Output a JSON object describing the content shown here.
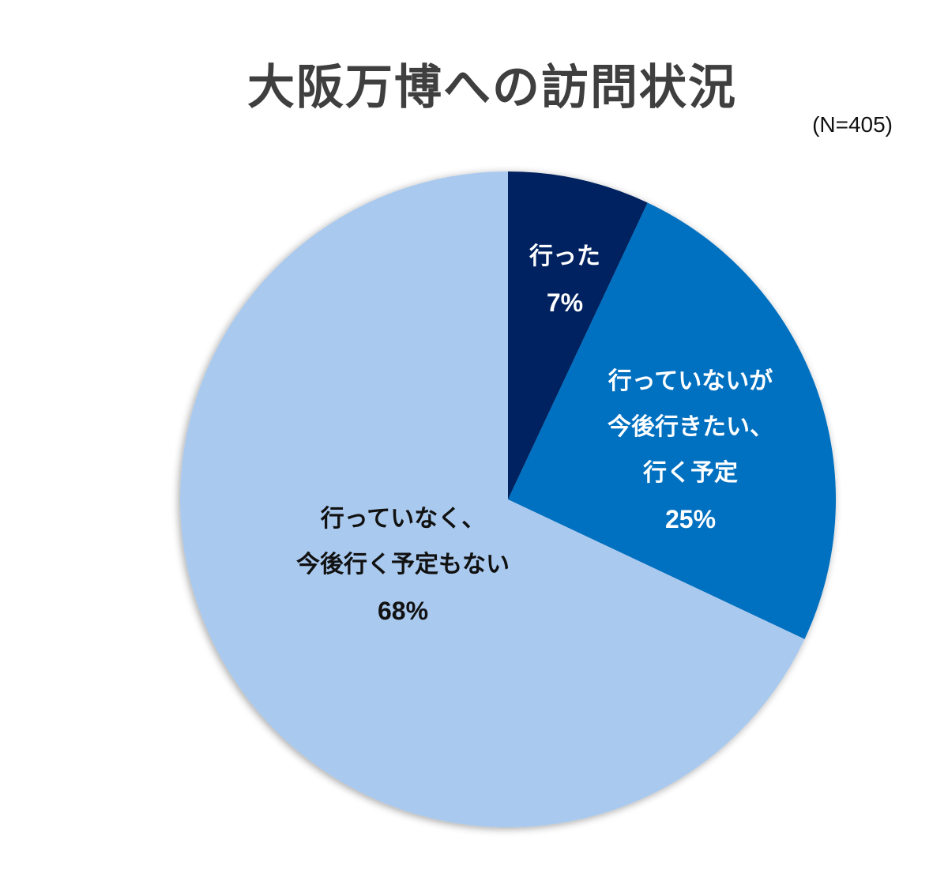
{
  "chart_data": {
    "type": "pie",
    "title": "大阪万博への訪問状況",
    "subtitle": "(N=405)",
    "categories": [
      "行った",
      "行っていないが今後行きたい、行く予定",
      "行っていなく、今後行く予定もない"
    ],
    "values": [
      7,
      25,
      68
    ],
    "unit": "%",
    "colors": [
      "#002060",
      "#0070C0",
      "#A9C9EE"
    ],
    "labels": [
      {
        "lines": [
          "行った"
        ],
        "pct": "7%"
      },
      {
        "lines": [
          "行っていないが",
          "今後行きたい、",
          "行く予定"
        ],
        "pct": "25%"
      },
      {
        "lines": [
          "行っていなく、",
          "今後行く予定もない"
        ],
        "pct": "68%"
      }
    ],
    "start_angle": "12 o'clock",
    "direction": "clockwise",
    "legend": "none (data labels inside slices)"
  },
  "header": {
    "title": "大阪万博への訪問状況",
    "sample_size": "(N=405)"
  },
  "slices": [
    {
      "label_line1": "行った",
      "pct": "7%",
      "color": "#002060"
    },
    {
      "label_line1": "行っていないが",
      "label_line2": "今後行きたい、",
      "label_line3": "行く予定",
      "pct": "25%",
      "color": "#0070C0"
    },
    {
      "label_line1": "行っていなく、",
      "label_line2": "今後行く予定もない",
      "pct": "68%",
      "color": "#A9C9EE"
    }
  ]
}
